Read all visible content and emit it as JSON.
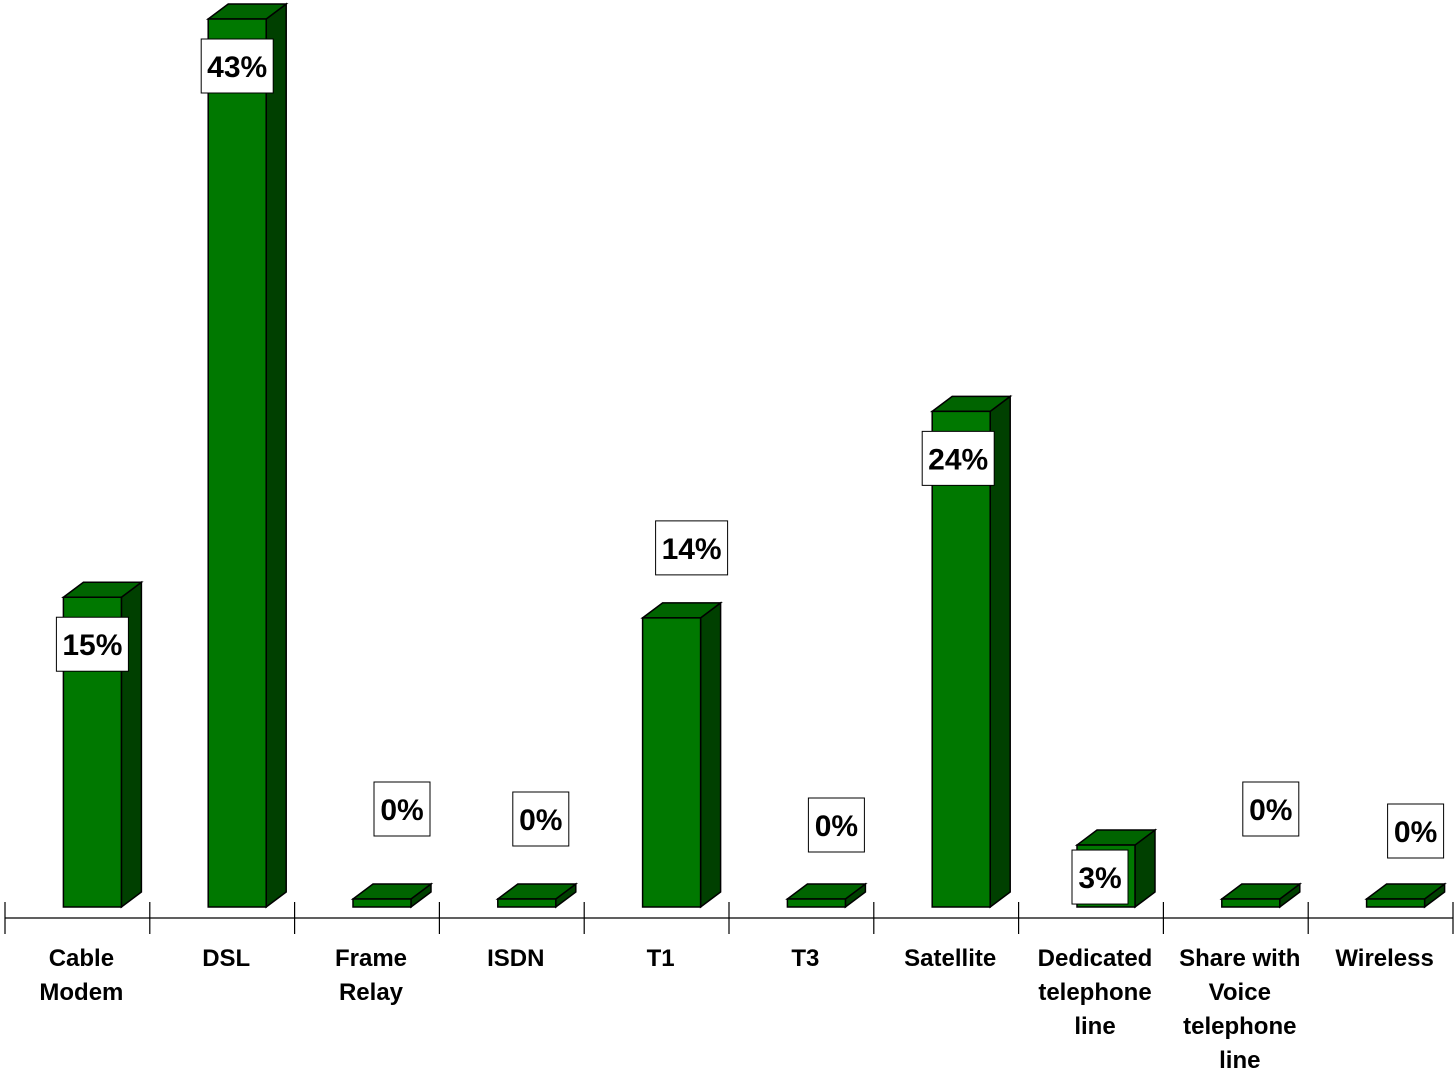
{
  "chart_data": {
    "type": "bar",
    "style": "3d-columns",
    "categories": [
      "Cable Modem",
      "DSL",
      "Frame Relay",
      "ISDN",
      "T1",
      "T3",
      "Satellite",
      "Dedicated telephone line",
      "Share with Voice telephone line",
      "Wireless"
    ],
    "category_lines": [
      [
        "Cable",
        "Modem"
      ],
      [
        "DSL"
      ],
      [
        "Frame",
        "Relay"
      ],
      [
        "ISDN"
      ],
      [
        "T1"
      ],
      [
        "T3"
      ],
      [
        "Satellite"
      ],
      [
        "Dedicated",
        "telephone",
        "line"
      ],
      [
        "Share with",
        "Voice",
        "telephone",
        "line"
      ],
      [
        "Wireless"
      ]
    ],
    "values": [
      15,
      43,
      0,
      0,
      14,
      0,
      24,
      3,
      0,
      0
    ],
    "value_labels": [
      "15%",
      "43%",
      "0%",
      "0%",
      "14%",
      "0%",
      "24%",
      "3%",
      "0%",
      "0%"
    ],
    "ylim": [
      0,
      43
    ],
    "grid": false,
    "legend": "none",
    "title": "",
    "xlabel": "",
    "ylabel": "",
    "colors": {
      "front": "#007800",
      "top": "#006400",
      "side": "#004000",
      "outline": "#000000",
      "axis": "#000000",
      "label_box": "#ffffff"
    }
  }
}
